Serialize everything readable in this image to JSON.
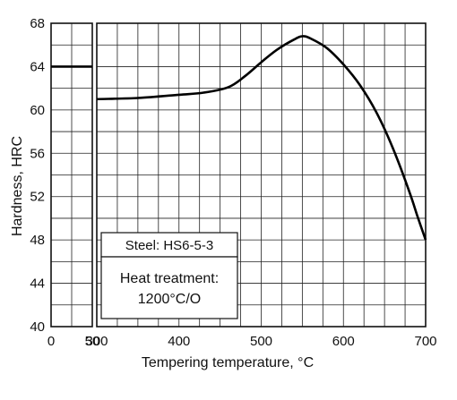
{
  "chart_data": {
    "type": "line",
    "title": "",
    "xlabel": "Tempering temperature, °C",
    "ylabel": "Hardness, HRC",
    "ylim": [
      40,
      68
    ],
    "y_ticks": [
      40,
      44,
      48,
      52,
      56,
      60,
      64,
      68
    ],
    "x_ticks_left": [
      0,
      50
    ],
    "x_ticks_right": [
      300,
      400,
      500,
      600,
      700
    ],
    "x_segments": [
      {
        "xlim": [
          0,
          50
        ]
      },
      {
        "xlim": [
          300,
          700
        ]
      }
    ],
    "grid": true,
    "series": [
      {
        "segment": 0,
        "x": [
          0,
          50
        ],
        "y": [
          64,
          64
        ]
      },
      {
        "segment": 1,
        "x": [
          300,
          350,
          400,
          430,
          460,
          480,
          500,
          520,
          540,
          550,
          560,
          580,
          600,
          620,
          640,
          660,
          680,
          690,
          700
        ],
        "y": [
          61.0,
          61.1,
          61.4,
          61.6,
          62.1,
          63.1,
          64.4,
          65.6,
          66.5,
          66.8,
          66.6,
          65.7,
          64.2,
          62.3,
          59.8,
          56.5,
          52.5,
          50.2,
          48.0
        ]
      }
    ],
    "legend": {
      "steel": "Steel: HS6-5-3",
      "treatment_line1": "Heat treatment:",
      "treatment_line2": "1200°C/O"
    }
  }
}
